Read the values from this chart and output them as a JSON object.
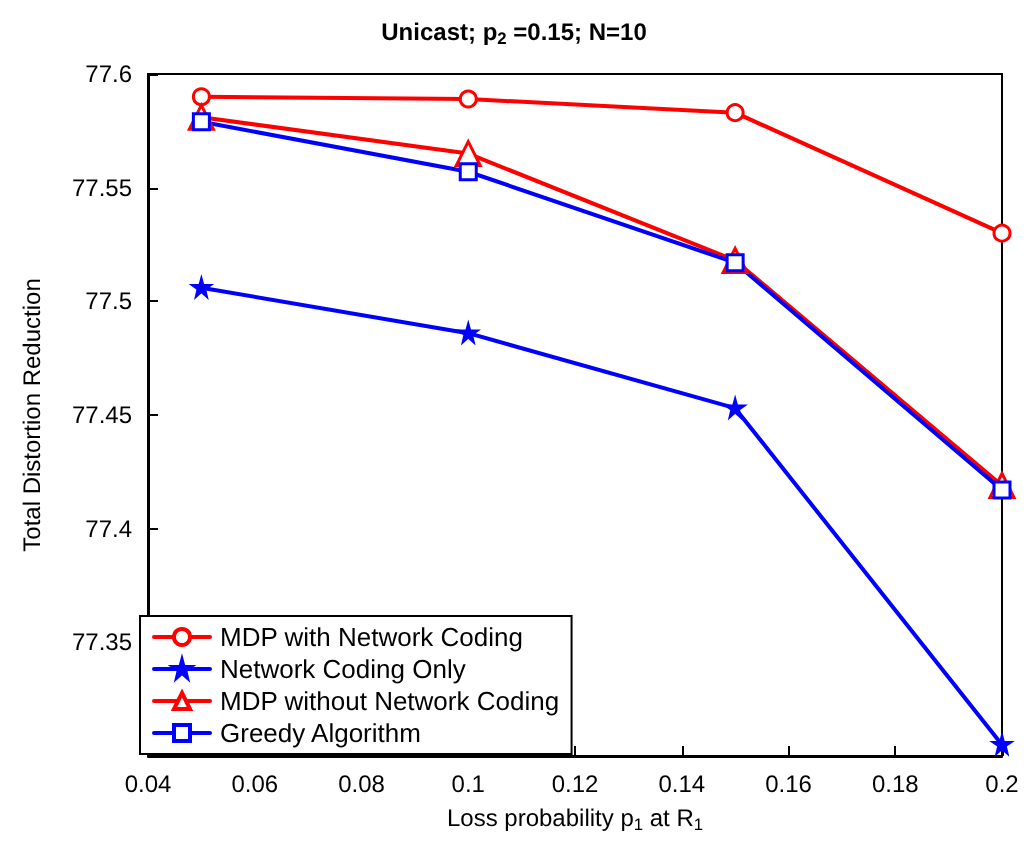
{
  "chart_data": {
    "type": "line",
    "title": "Unicast; p$_{2}$ =0.15; N=10",
    "xlabel": "Loss probability p$_{1}$ at R$_{1}$",
    "ylabel": "Total Distortion Reduction",
    "x": [
      0.05,
      0.1,
      0.15,
      0.2
    ],
    "series": [
      {
        "name": "MDP with Network Coding",
        "color": "#ff0000",
        "marker": "circle",
        "values": [
          77.59,
          77.589,
          77.583,
          77.53
        ]
      },
      {
        "name": "Network Coding Only",
        "color": "#0000ff",
        "marker": "star",
        "values": [
          77.506,
          77.486,
          77.453,
          77.305
        ]
      },
      {
        "name": "MDP without Network Coding",
        "color": "#ff0000",
        "marker": "triangle",
        "values": [
          77.581,
          77.565,
          77.518,
          77.419
        ]
      },
      {
        "name": "Greedy Algorithm",
        "color": "#0000ff",
        "marker": "square",
        "values": [
          77.579,
          77.557,
          77.517,
          77.417
        ]
      }
    ],
    "xlim": [
      0.04,
      0.2
    ],
    "xticks": [
      0.04,
      0.06,
      0.08,
      0.1,
      0.12,
      0.14,
      0.16,
      0.18,
      0.2
    ],
    "ylim": [
      77.3,
      77.6
    ],
    "yticks": [
      77.35,
      77.4,
      77.45,
      77.5,
      77.55,
      77.6
    ],
    "grid": false,
    "legend": "bottom left",
    "line_style": "solid"
  }
}
